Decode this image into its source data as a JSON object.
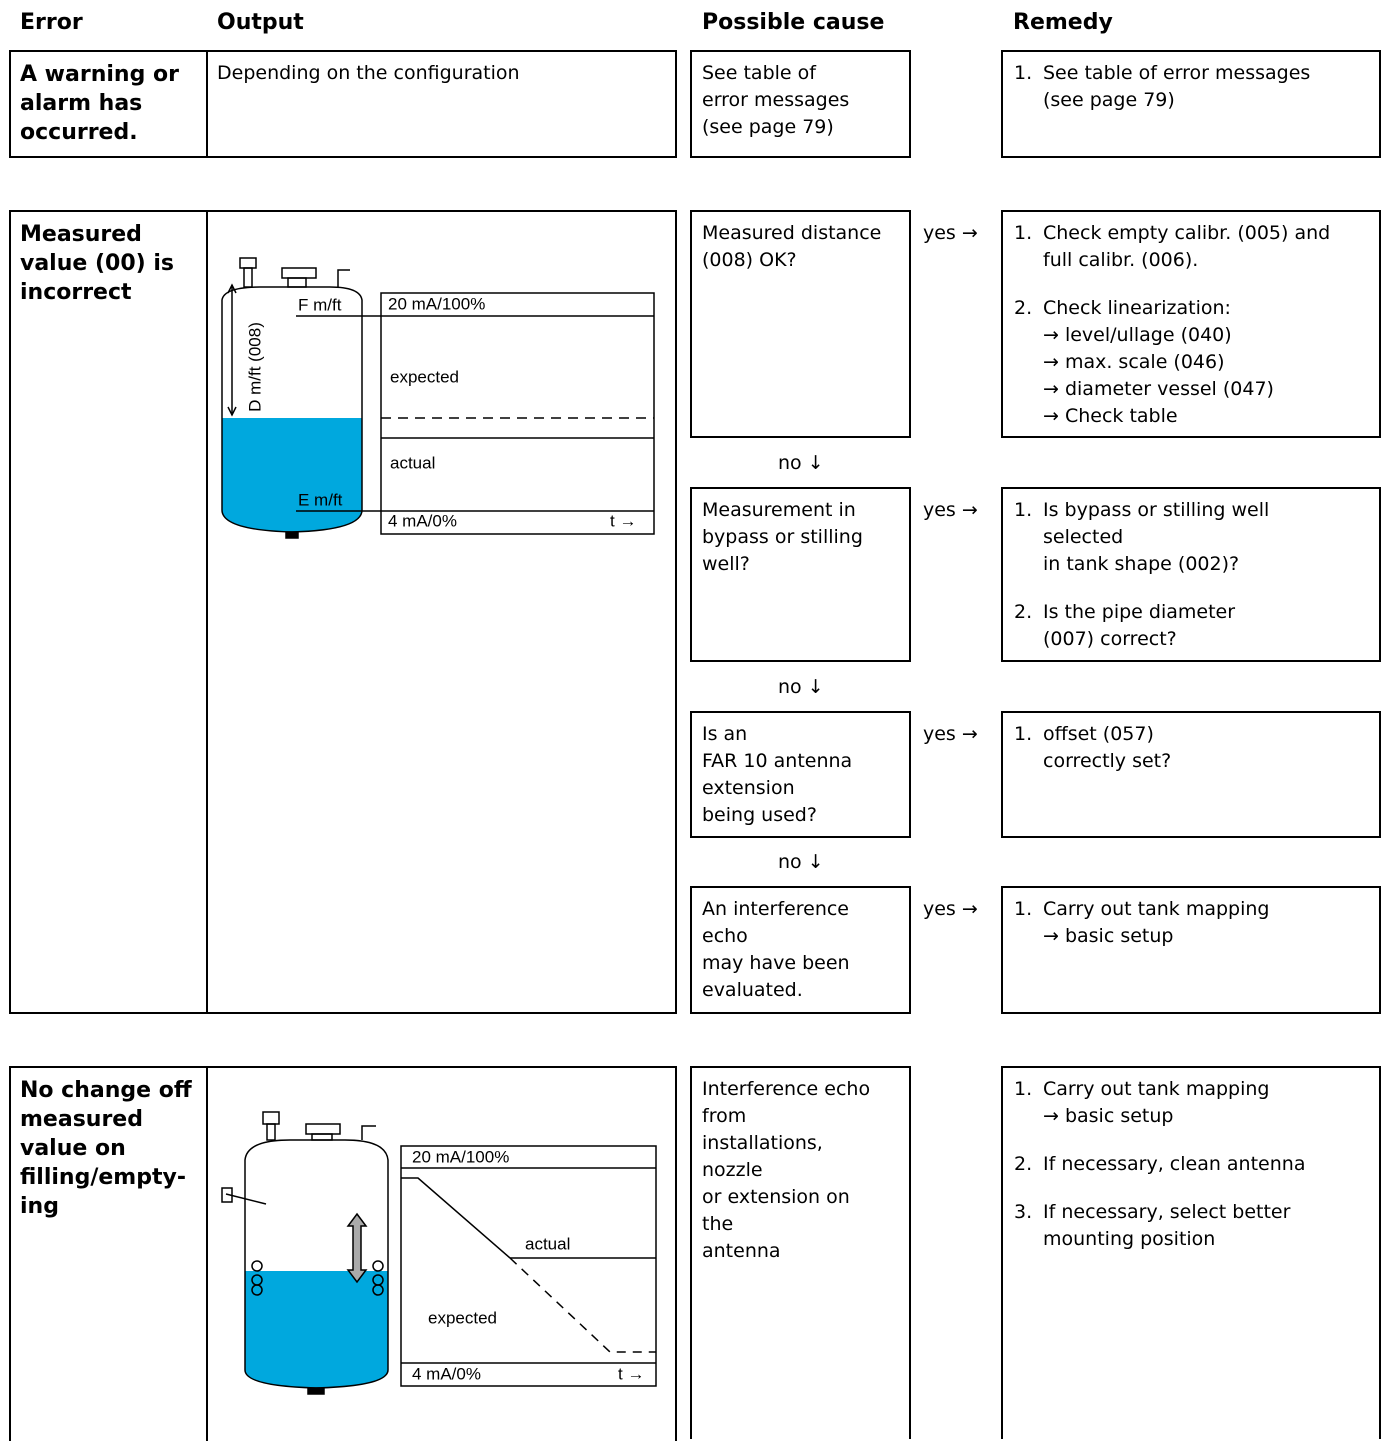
{
  "header": {
    "error": "Error",
    "output": "Output",
    "cause": "Possible cause",
    "remedy": "Remedy"
  },
  "rows": [
    {
      "error": [
        "A warning or",
        "alarm has",
        "occurred."
      ],
      "output": "Depending on the configuration",
      "steps": [
        {
          "cause": [
            "See table of",
            "error messages",
            "(see page 79)"
          ],
          "remedy": [
            {
              "num": "1.",
              "lines": [
                "See table of error messages",
                "(see page 79)"
              ]
            }
          ]
        }
      ]
    },
    {
      "error": [
        "Measured",
        "value (00) is",
        "incorrect"
      ],
      "diagram": {
        "top": "F m/ft",
        "high": "20 mA/100%",
        "distance": "D m/ft (008)",
        "expected": "expected",
        "actual": "actual",
        "bottom": "E m/ft",
        "low": "4 mA/0%",
        "time": "t →"
      },
      "steps": [
        {
          "cause": [
            "Measured distance",
            "(008) OK?"
          ],
          "link": "yes →",
          "remedy": [
            {
              "num": "1.",
              "lines": [
                "Check empty calibr. (005) and",
                "full calibr. (006)."
              ]
            },
            {
              "num": "2.",
              "lines": [
                "Check linearization:",
                "→ level/ullage (040)",
                "→ max. scale (046)",
                "→ diameter vessel (047)",
                "→ Check table"
              ]
            }
          ],
          "next": "no ↓"
        },
        {
          "cause": [
            "Measurement in",
            "bypass or stilling",
            "well?"
          ],
          "link": "yes →",
          "remedy": [
            {
              "num": "1.",
              "lines": [
                "Is bypass or stilling well",
                "selected",
                "in tank shape (002)?"
              ]
            },
            {
              "num": "2.",
              "lines": [
                "Is the pipe diameter",
                "(007) correct?"
              ]
            }
          ],
          "next": "no ↓"
        },
        {
          "cause": [
            "Is an",
            "FAR 10 antenna",
            "extension",
            "being used?"
          ],
          "link": "yes →",
          "remedy": [
            {
              "num": "1.",
              "lines": [
                "offset (057)",
                "correctly set?"
              ]
            }
          ],
          "next": "no ↓"
        },
        {
          "cause": [
            "An interference",
            "echo",
            "may have been",
            "evaluated."
          ],
          "link": "yes →",
          "remedy": [
            {
              "num": "1.",
              "lines": [
                "Carry out tank mapping",
                "→ basic setup"
              ]
            }
          ]
        }
      ]
    },
    {
      "error": [
        "No change off",
        "measured",
        "value on",
        "filling/empty-",
        "ing"
      ],
      "diagram": {
        "high": "20 mA/100%",
        "actual": "actual",
        "expected": "expected",
        "low": "4 mA/0%",
        "time": "t →"
      },
      "steps": [
        {
          "cause": [
            "Interference echo",
            "from",
            "installations,",
            "nozzle",
            "or extension on",
            "the",
            "antenna"
          ],
          "remedy": [
            {
              "num": "1.",
              "lines": [
                "Carry out tank mapping",
                "→ basic setup"
              ]
            },
            {
              "num": "2.",
              "lines": [
                "If necessary, clean antenna"
              ]
            },
            {
              "num": "3.",
              "lines": [
                "If necessary, select better",
                "mounting position"
              ]
            }
          ]
        }
      ]
    }
  ]
}
